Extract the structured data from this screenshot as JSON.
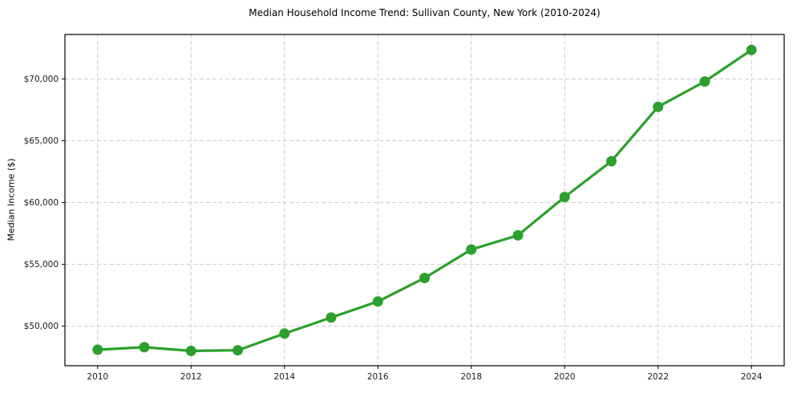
{
  "chart_data": {
    "type": "line",
    "title": "Median Household Income Trend: Sullivan County, New York (2010-2024)",
    "xlabel": "",
    "ylabel": "Median Income ($)",
    "x": [
      2010,
      2011,
      2012,
      2013,
      2014,
      2015,
      2016,
      2017,
      2018,
      2019,
      2020,
      2021,
      2022,
      2023,
      2024
    ],
    "values": [
      48100,
      48300,
      48000,
      48050,
      49400,
      50700,
      52000,
      53900,
      56200,
      57350,
      60450,
      63350,
      67750,
      69800,
      72350
    ],
    "series_name": "Median Household Income",
    "xlim": [
      2009.3,
      2024.7
    ],
    "ylim": [
      46800,
      73600
    ],
    "xticks": [
      2010,
      2012,
      2014,
      2016,
      2018,
      2020,
      2022,
      2024
    ],
    "xtick_labels": [
      "2010",
      "2012",
      "2014",
      "2016",
      "2018",
      "2020",
      "2022",
      "2024"
    ],
    "yticks": [
      50000,
      55000,
      60000,
      65000,
      70000
    ],
    "ytick_labels": [
      "$50,000",
      "$55,000",
      "$60,000",
      "$65,000",
      "$70,000"
    ],
    "grid": true,
    "grid_style": "dashed",
    "legend_position": "none",
    "colors": {
      "line": "#2ca02c",
      "marker": "#2ca02c",
      "grid": "#cccccc",
      "spine": "#000000",
      "tick_text": "#1a1a1a",
      "background": "#ffffff"
    }
  }
}
